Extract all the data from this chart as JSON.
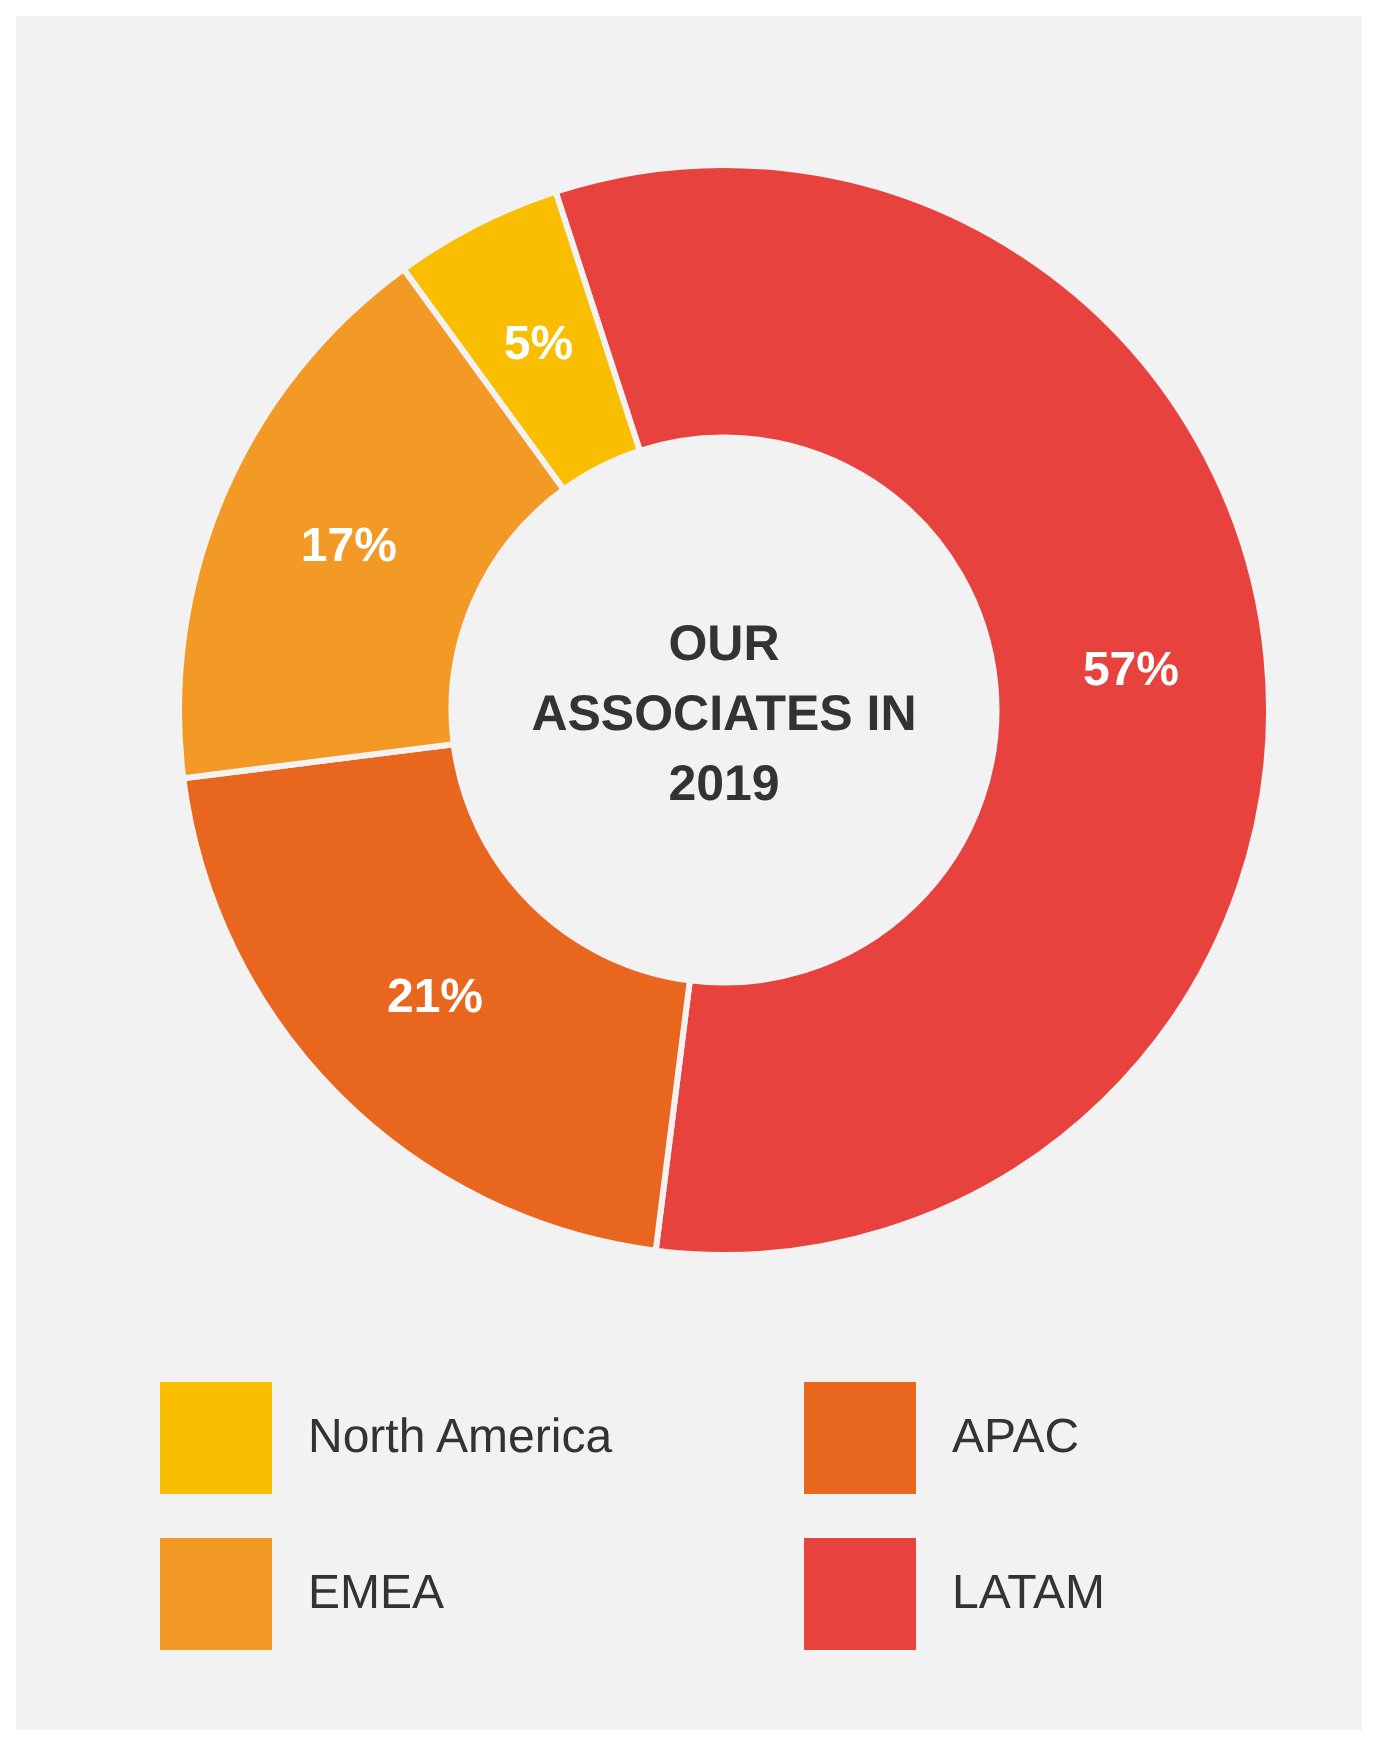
{
  "chart_data": {
    "type": "donut",
    "title": "OUR ASSOCIATES IN 2019",
    "categories": [
      "LATAM",
      "APAC",
      "EMEA",
      "North America"
    ],
    "values": [
      57,
      21,
      17,
      5
    ],
    "value_labels": [
      "57%",
      "21%",
      "17%",
      "5%"
    ],
    "colors": [
      "#e8423e",
      "#e9661f",
      "#f39a26",
      "#f9be00"
    ],
    "legend": "bottom"
  }
}
